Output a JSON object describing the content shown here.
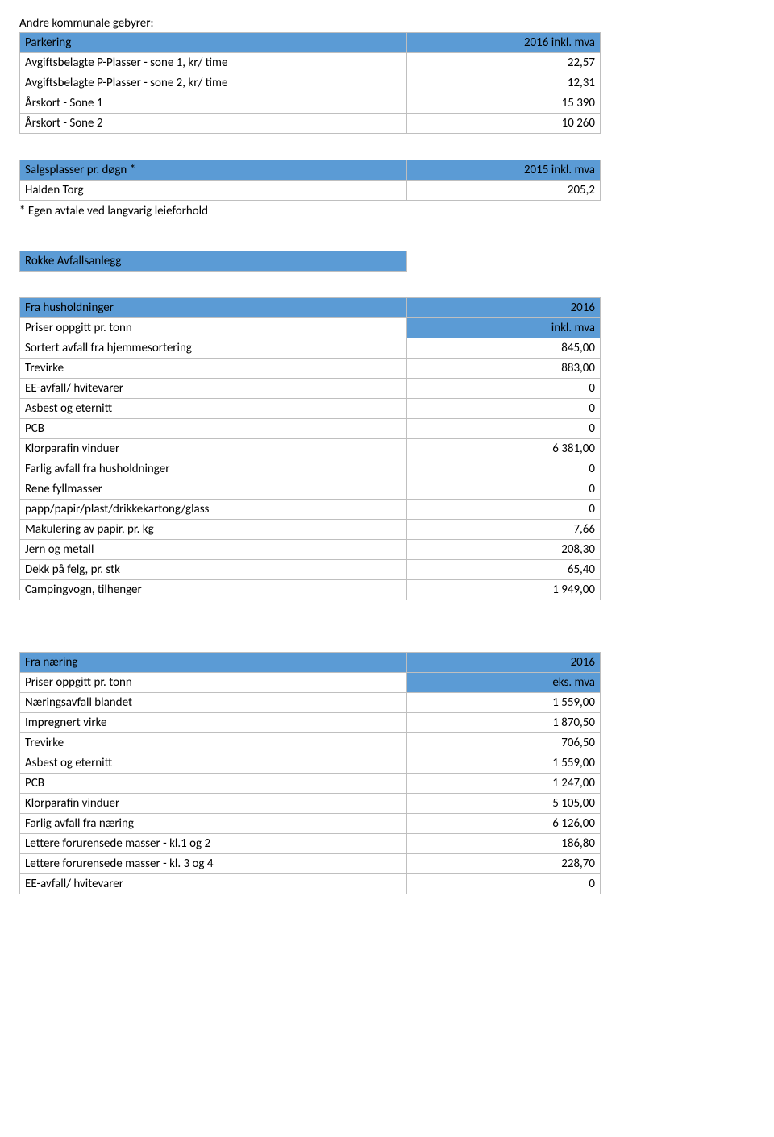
{
  "colors": {
    "header_bg": "#5b9bd5",
    "border": "#bfbfbf",
    "text": "#000000",
    "page_bg": "#ffffff"
  },
  "page_title": "Andre kommunale gebyrer:",
  "parkering": {
    "header_label": "Parkering",
    "header_value": "2016 inkl. mva",
    "rows": [
      {
        "label": "Avgiftsbelagte P-Plasser  - sone 1, kr/ time",
        "value": "22,57"
      },
      {
        "label": "Avgiftsbelagte P-Plasser  - sone 2, kr/ time",
        "value": "12,31"
      },
      {
        "label": "Årskort - Sone 1",
        "value": "15 390"
      },
      {
        "label": "Årskort - Sone 2",
        "value": "10 260"
      }
    ]
  },
  "salgsplasser": {
    "header_label": "Salgsplasser pr. døgn *",
    "header_value": "2015 inkl. mva",
    "rows": [
      {
        "label": "Halden Torg",
        "value": "205,2"
      }
    ],
    "note": "* Egen avtale ved langvarig leieforhold"
  },
  "rokke": {
    "title": "Rokke Avfallsanlegg"
  },
  "husholdninger": {
    "header_label": "Fra husholdninger",
    "header_value": "2016",
    "sub_label": "Priser oppgitt pr. tonn",
    "sub_value": "inkl. mva",
    "rows": [
      {
        "label": "Sortert avfall fra hjemmesortering",
        "value": "845,00"
      },
      {
        "label": "Trevirke",
        "value": "883,00"
      },
      {
        "label": "EE-avfall/ hvitevarer",
        "value": "0"
      },
      {
        "label": "Asbest og eternitt",
        "value": "0"
      },
      {
        "label": "PCB",
        "value": "0"
      },
      {
        "label": "Klorparafin vinduer",
        "value": "6 381,00"
      },
      {
        "label": "Farlig avfall fra husholdninger",
        "value": "0"
      },
      {
        "label": "Rene fyllmasser",
        "value": "0"
      },
      {
        "label": "papp/papir/plast/drikkekartong/glass",
        "value": "0"
      },
      {
        "label": "Makulering av papir, pr. kg",
        "value": "7,66"
      },
      {
        "label": "Jern og metall",
        "value": "208,30"
      },
      {
        "label": "Dekk på felg, pr. stk",
        "value": "65,40"
      },
      {
        "label": "Campingvogn, tilhenger",
        "value": "1 949,00"
      }
    ]
  },
  "naering": {
    "header_label": "Fra næring",
    "header_value": "2016",
    "sub_label": "Priser oppgitt pr. tonn",
    "sub_value": "eks. mva",
    "rows": [
      {
        "label": "Næringsavfall blandet",
        "value": "1 559,00"
      },
      {
        "label": "Impregnert virke",
        "value": "1 870,50"
      },
      {
        "label": "Trevirke",
        "value": "706,50"
      },
      {
        "label": "Asbest og eternitt",
        "value": "1 559,00"
      },
      {
        "label": "PCB",
        "value": "1 247,00"
      },
      {
        "label": "Klorparafin vinduer",
        "value": "5 105,00"
      },
      {
        "label": "Farlig avfall fra næring",
        "value": "6 126,00"
      },
      {
        "label": "Lettere forurensede masser - kl.1 og 2",
        "value": "186,80"
      },
      {
        "label": "Lettere forurensede masser - kl. 3 og 4",
        "value": "228,70"
      },
      {
        "label": "EE-avfall/ hvitevarer",
        "value": "0"
      }
    ]
  }
}
